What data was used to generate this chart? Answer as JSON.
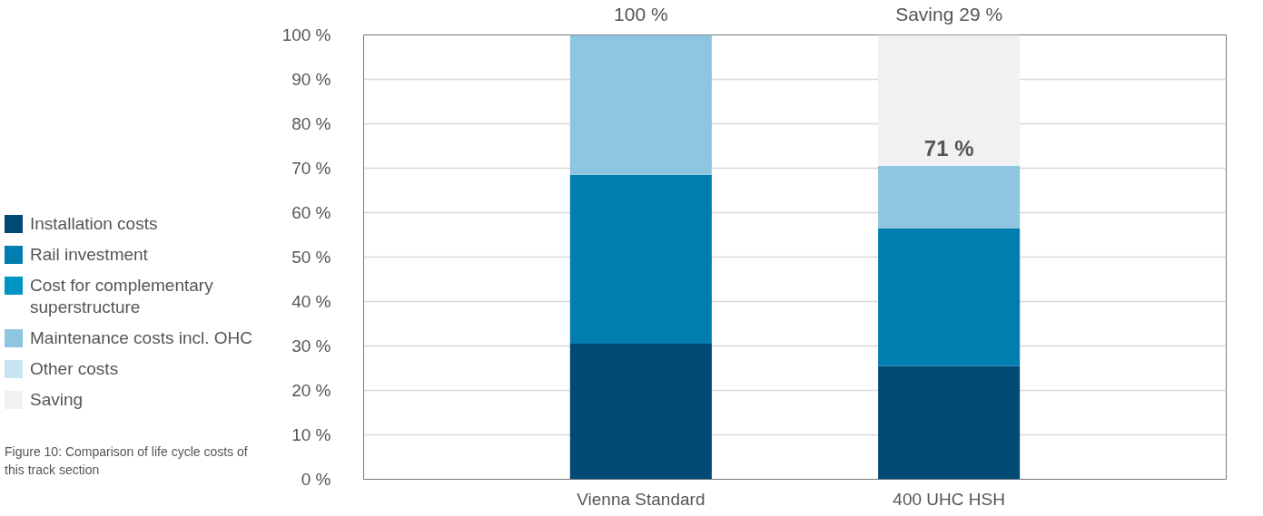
{
  "chart_data": {
    "type": "bar",
    "stacked": true,
    "categories": [
      "Vienna Standard",
      "400 UHC HSH"
    ],
    "series": [
      {
        "name": "Installation costs",
        "color": "#004a74",
        "values": [
          30.5,
          25.5
        ]
      },
      {
        "name": "Rail investment",
        "color": "#007eb0",
        "values": [
          38,
          31
        ]
      },
      {
        "name": "Cost for complementary superstructure",
        "color": "#0096c4",
        "values": [
          0,
          0
        ]
      },
      {
        "name": "Maintenance costs incl. OHC",
        "color": "#8ec5e0",
        "values": [
          31.5,
          14
        ]
      },
      {
        "name": "Other costs",
        "color": "#c7e4f0",
        "values": [
          0,
          0
        ]
      },
      {
        "name": "Saving",
        "color": "#f0f1f3",
        "values": [
          null,
          29.5
        ]
      }
    ],
    "ylim": [
      0,
      100
    ],
    "yticks": [
      {
        "value": 0,
        "label": "0 %"
      },
      {
        "value": 10,
        "label": "10 %"
      },
      {
        "value": 20,
        "label": "20 %"
      },
      {
        "value": 30,
        "label": "30 %"
      },
      {
        "value": 40,
        "label": "40 %"
      },
      {
        "value": 50,
        "label": "50 %"
      },
      {
        "value": 60,
        "label": "60 %"
      },
      {
        "value": 70,
        "label": "70 %"
      },
      {
        "value": 80,
        "label": "80 %"
      },
      {
        "value": 90,
        "label": "90 %"
      },
      {
        "value": 100,
        "label": "100 %"
      }
    ],
    "grid": "y",
    "legend": "left",
    "annotations": [
      {
        "text": "100 %",
        "x": "Vienna Standard",
        "y": 100
      },
      {
        "text": "71 %",
        "x": "400 UHC HSH",
        "y": 71
      },
      {
        "text": "Saving 29 %",
        "x": "400 UHC HSH",
        "y": 100
      },
      "Figure 10: Comparison of life cycle costs of this track section"
    ]
  }
}
